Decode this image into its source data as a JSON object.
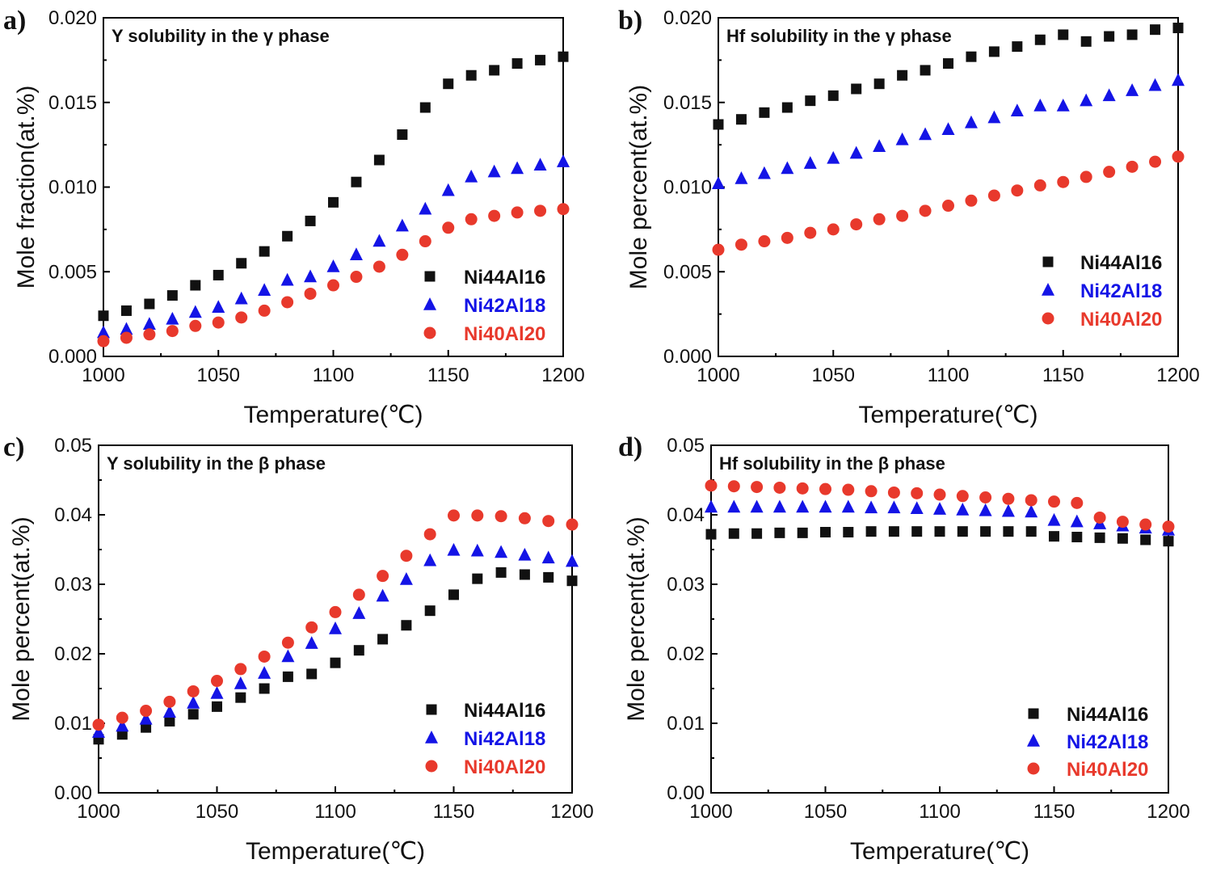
{
  "figure": {
    "panels": [
      {
        "label": "a)",
        "title": "Y solubility in the γ phase"
      },
      {
        "label": "b)",
        "title": "Hf solubility in the γ phase"
      },
      {
        "label": "c)",
        "title": "Y solubility in the β phase"
      },
      {
        "label": "d)",
        "title": "Hf solubility in the β phase"
      }
    ]
  },
  "chart_data": [
    {
      "type": "scatter",
      "title": "Y solubility in the γ phase",
      "xlabel": "Temperature(℃)",
      "ylabel": "Mole fraction(at.%)",
      "xlim": [
        1000,
        1200
      ],
      "ylim": [
        0,
        0.02
      ],
      "xticks": [
        "1000",
        "1050",
        "1100",
        "1150",
        "1200"
      ],
      "yticks": [
        "0.000",
        "0.005",
        "0.010",
        "0.015",
        "0.020"
      ],
      "legend_position": "bottom-right",
      "x": [
        1000,
        1010,
        1020,
        1030,
        1040,
        1050,
        1060,
        1070,
        1080,
        1090,
        1100,
        1110,
        1120,
        1130,
        1140,
        1150,
        1160,
        1170,
        1180,
        1190,
        1200
      ],
      "series": [
        {
          "name": "Ni44Al16",
          "marker": "square",
          "color": "#111111",
          "values": [
            0.0024,
            0.0027,
            0.0031,
            0.0036,
            0.0042,
            0.0048,
            0.0055,
            0.0062,
            0.0071,
            0.008,
            0.0091,
            0.0103,
            0.0116,
            0.0131,
            0.0147,
            0.0161,
            0.0166,
            0.0169,
            0.0173,
            0.0175,
            0.0177
          ]
        },
        {
          "name": "Ni42Al18",
          "marker": "triangle",
          "color": "#1414e6",
          "values": [
            0.0014,
            0.0016,
            0.0019,
            0.0022,
            0.0026,
            0.0029,
            0.0034,
            0.0039,
            0.0045,
            0.0047,
            0.0053,
            0.006,
            0.0068,
            0.0077,
            0.0087,
            0.0098,
            0.0106,
            0.0109,
            0.0111,
            0.0113,
            0.0115
          ]
        },
        {
          "name": "Ni40Al20",
          "marker": "circle",
          "color": "#e8392c",
          "values": [
            0.0009,
            0.0011,
            0.0013,
            0.0015,
            0.0018,
            0.002,
            0.0023,
            0.0027,
            0.0032,
            0.0037,
            0.0042,
            0.0047,
            0.0053,
            0.006,
            0.0068,
            0.0076,
            0.0081,
            0.0083,
            0.0085,
            0.0086,
            0.0087
          ]
        }
      ]
    },
    {
      "type": "scatter",
      "title": "Hf solubility in the γ phase",
      "xlabel": "Temperature(℃)",
      "ylabel": "Mole percent(at.%)",
      "xlim": [
        1000,
        1200
      ],
      "ylim": [
        0,
        0.02
      ],
      "xticks": [
        "1000",
        "1050",
        "1100",
        "1150",
        "1200"
      ],
      "yticks": [
        "0.000",
        "0.005",
        "0.010",
        "0.015",
        "0.020"
      ],
      "legend_position": "bottom-right",
      "x": [
        1000,
        1010,
        1020,
        1030,
        1040,
        1050,
        1060,
        1070,
        1080,
        1090,
        1100,
        1110,
        1120,
        1130,
        1140,
        1150,
        1160,
        1170,
        1180,
        1190,
        1200
      ],
      "series": [
        {
          "name": "Ni44Al16",
          "marker": "square",
          "color": "#111111",
          "values": [
            0.0137,
            0.014,
            0.0144,
            0.0147,
            0.0151,
            0.0154,
            0.0158,
            0.0161,
            0.0166,
            0.0169,
            0.0173,
            0.0177,
            0.018,
            0.0183,
            0.0187,
            0.019,
            0.0186,
            0.0189,
            0.019,
            0.0193,
            0.0194
          ]
        },
        {
          "name": "Ni42Al18",
          "marker": "triangle",
          "color": "#1414e6",
          "values": [
            0.0102,
            0.0105,
            0.0108,
            0.0111,
            0.0114,
            0.0117,
            0.012,
            0.0124,
            0.0128,
            0.0131,
            0.0134,
            0.0138,
            0.0141,
            0.0145,
            0.0148,
            0.0148,
            0.0151,
            0.0154,
            0.0157,
            0.016,
            0.0163
          ]
        },
        {
          "name": "Ni40Al20",
          "marker": "circle",
          "color": "#e8392c",
          "values": [
            0.0063,
            0.0066,
            0.0068,
            0.007,
            0.0073,
            0.0075,
            0.0078,
            0.0081,
            0.0083,
            0.0086,
            0.0089,
            0.0092,
            0.0095,
            0.0098,
            0.0101,
            0.0103,
            0.0106,
            0.0109,
            0.0112,
            0.0115,
            0.0118
          ]
        }
      ]
    },
    {
      "type": "scatter",
      "title": "Y solubility in the β phase",
      "xlabel": "Temperature(℃)",
      "ylabel": "Mole percent(at.%)",
      "xlim": [
        1000,
        1200
      ],
      "ylim": [
        0,
        0.05
      ],
      "xticks": [
        "1000",
        "1050",
        "1100",
        "1150",
        "1200"
      ],
      "yticks": [
        "0.00",
        "0.01",
        "0.02",
        "0.03",
        "0.04",
        "0.05"
      ],
      "legend_position": "bottom-right",
      "x": [
        1000,
        1010,
        1020,
        1030,
        1040,
        1050,
        1060,
        1070,
        1080,
        1090,
        1100,
        1110,
        1120,
        1130,
        1140,
        1150,
        1160,
        1170,
        1180,
        1190,
        1200
      ],
      "series": [
        {
          "name": "Ni44Al16",
          "marker": "square",
          "color": "#111111",
          "values": [
            0.0077,
            0.0084,
            0.0094,
            0.0103,
            0.0113,
            0.0124,
            0.0137,
            0.015,
            0.0167,
            0.0171,
            0.0187,
            0.0205,
            0.0221,
            0.0241,
            0.0262,
            0.0285,
            0.0308,
            0.0317,
            0.0314,
            0.031,
            0.0305
          ]
        },
        {
          "name": "Ni42Al18",
          "marker": "triangle",
          "color": "#1414e6",
          "values": [
            0.0087,
            0.0096,
            0.0106,
            0.0116,
            0.0129,
            0.0143,
            0.0157,
            0.0172,
            0.0196,
            0.0215,
            0.0236,
            0.0258,
            0.0283,
            0.0307,
            0.0334,
            0.0349,
            0.0348,
            0.0346,
            0.0342,
            0.0338,
            0.0333
          ]
        },
        {
          "name": "Ni40Al20",
          "marker": "circle",
          "color": "#e8392c",
          "values": [
            0.0098,
            0.0108,
            0.0118,
            0.0131,
            0.0146,
            0.0161,
            0.0178,
            0.0196,
            0.0216,
            0.0238,
            0.026,
            0.0285,
            0.0312,
            0.0341,
            0.0372,
            0.0399,
            0.0399,
            0.0398,
            0.0395,
            0.0391,
            0.0386
          ]
        }
      ]
    },
    {
      "type": "scatter",
      "title": "Hf solubility in the β phase",
      "xlabel": "Temperature(℃)",
      "ylabel": "Mole percent(at.%)",
      "xlim": [
        1000,
        1200
      ],
      "ylim": [
        0,
        0.05
      ],
      "xticks": [
        "1000",
        "1050",
        "1100",
        "1150",
        "1200"
      ],
      "yticks": [
        "0.00",
        "0.01",
        "0.02",
        "0.03",
        "0.04",
        "0.05"
      ],
      "legend_position": "bottom-right",
      "x": [
        1000,
        1010,
        1020,
        1030,
        1040,
        1050,
        1060,
        1070,
        1080,
        1090,
        1100,
        1110,
        1120,
        1130,
        1140,
        1150,
        1160,
        1170,
        1180,
        1190,
        1200
      ],
      "series": [
        {
          "name": "Ni44Al16",
          "marker": "square",
          "color": "#111111",
          "values": [
            0.0372,
            0.0373,
            0.0373,
            0.0374,
            0.0374,
            0.0375,
            0.0375,
            0.0376,
            0.0376,
            0.0376,
            0.0376,
            0.0376,
            0.0376,
            0.0376,
            0.0376,
            0.0369,
            0.0368,
            0.0367,
            0.0366,
            0.0364,
            0.0362
          ]
        },
        {
          "name": "Ni42Al18",
          "marker": "triangle",
          "color": "#1414e6",
          "values": [
            0.0411,
            0.0411,
            0.0411,
            0.0411,
            0.0411,
            0.0411,
            0.0411,
            0.041,
            0.041,
            0.0409,
            0.0408,
            0.0407,
            0.0406,
            0.0405,
            0.0404,
            0.0392,
            0.039,
            0.0387,
            0.0384,
            0.0381,
            0.0378
          ]
        },
        {
          "name": "Ni40Al20",
          "marker": "circle",
          "color": "#e8392c",
          "values": [
            0.0442,
            0.0441,
            0.044,
            0.0439,
            0.0438,
            0.0437,
            0.0436,
            0.0434,
            0.0432,
            0.0431,
            0.0429,
            0.0427,
            0.0425,
            0.0423,
            0.0421,
            0.0419,
            0.0417,
            0.0396,
            0.039,
            0.0386,
            0.0383
          ]
        }
      ]
    }
  ]
}
